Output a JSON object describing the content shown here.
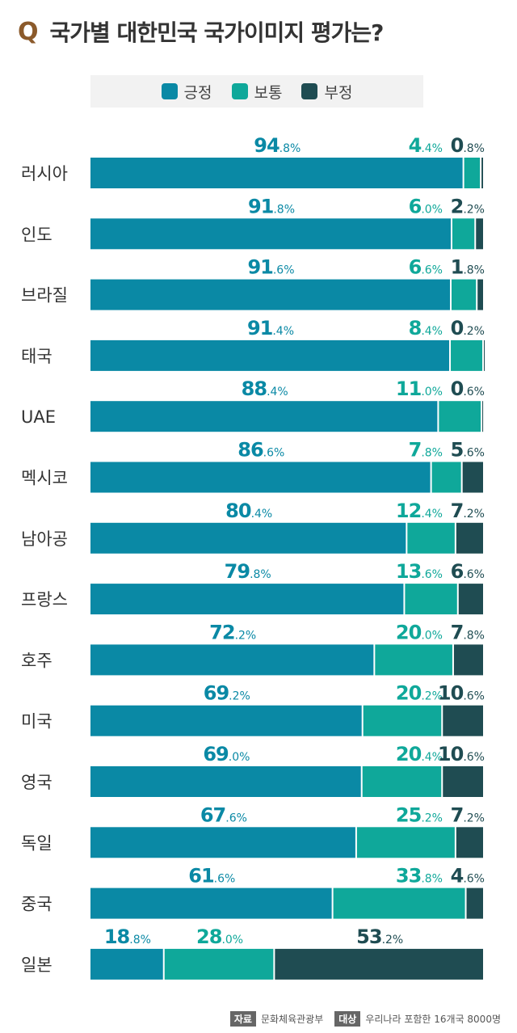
{
  "header": {
    "q_mark": "Q",
    "title": "국가별 대한민국 국가이미지 평가는?"
  },
  "colors": {
    "positive": "#0a89a5",
    "neutral": "#0fa89a",
    "negative": "#1f4c52"
  },
  "legend": [
    {
      "label": "긍정",
      "color": "#0a89a5"
    },
    {
      "label": "보통",
      "color": "#0fa89a"
    },
    {
      "label": "부정",
      "color": "#1f4c52"
    }
  ],
  "chart_data": {
    "type": "bar",
    "orientation": "horizontal",
    "stacked": true,
    "unit": "%",
    "categories": [
      "러시아",
      "인도",
      "브라질",
      "태국",
      "UAE",
      "멕시코",
      "남아공",
      "프랑스",
      "호주",
      "미국",
      "영국",
      "독일",
      "중국",
      "일본"
    ],
    "series": [
      {
        "name": "긍정",
        "values": [
          94.8,
          91.8,
          91.6,
          91.4,
          88.4,
          86.6,
          80.4,
          79.8,
          72.2,
          69.2,
          69.0,
          67.6,
          61.6,
          18.8
        ]
      },
      {
        "name": "보통",
        "values": [
          4.4,
          6.0,
          6.6,
          8.4,
          11.0,
          7.8,
          12.4,
          13.6,
          20.0,
          20.2,
          20.4,
          25.2,
          33.8,
          28.0
        ]
      },
      {
        "name": "부정",
        "values": [
          0.8,
          2.2,
          1.8,
          0.2,
          0.6,
          5.6,
          7.2,
          6.6,
          7.8,
          10.6,
          10.6,
          7.2,
          4.6,
          53.2
        ]
      }
    ],
    "xlim": [
      0,
      100
    ]
  },
  "footer": {
    "source_tag": "자료",
    "source": "문화체육관광부",
    "target_tag": "대상",
    "target": "우리나라 포함한 16개국 8000명"
  }
}
